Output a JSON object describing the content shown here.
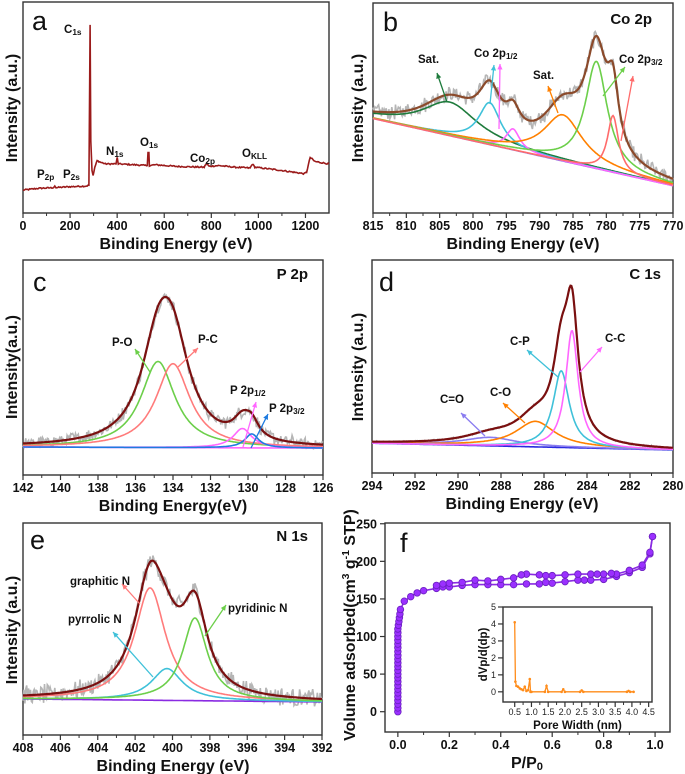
{
  "chart_data": [
    {
      "panel": "a",
      "type": "line",
      "title": "",
      "xlabel": "Binding Energy (eV)",
      "ylabel": "Intensity (a.u.)",
      "xlim": [
        0,
        1300
      ],
      "ylim": [
        -0.14,
        1.15
      ],
      "grid": false,
      "xticks": [
        0,
        200,
        400,
        600,
        800,
        1000,
        1200
      ],
      "series": [
        {
          "color": "#9b1b1b",
          "points": [
            [
              0,
              0
            ],
            [
              60,
              0.01
            ],
            [
              130,
              0.015
            ],
            [
              135,
              0.025
            ],
            [
              140,
              0.015
            ],
            [
              190,
              0.02
            ],
            [
              270,
              0.025
            ],
            [
              280,
              0.03
            ],
            [
              283,
              0.6
            ],
            [
              285,
              1.01
            ],
            [
              288,
              0.3
            ],
            [
              293,
              0.12
            ],
            [
              298,
              0.09
            ],
            [
              305,
              0.14
            ],
            [
              315,
              0.18
            ],
            [
              330,
              0.17
            ],
            [
              350,
              0.16
            ],
            [
              395,
              0.16
            ],
            [
              400,
              0.2
            ],
            [
              405,
              0.16
            ],
            [
              470,
              0.155
            ],
            [
              528,
              0.15
            ],
            [
              531,
              0.23
            ],
            [
              535,
              0.23
            ],
            [
              537,
              0.15
            ],
            [
              560,
              0.155
            ],
            [
              650,
              0.145
            ],
            [
              770,
              0.14
            ],
            [
              780,
              0.165
            ],
            [
              790,
              0.145
            ],
            [
              830,
              0.15
            ],
            [
              900,
              0.14
            ],
            [
              965,
              0.135
            ],
            [
              975,
              0.16
            ],
            [
              985,
              0.14
            ],
            [
              1100,
              0.12
            ],
            [
              1195,
              0.1
            ],
            [
              1205,
              0.11
            ],
            [
              1220,
              0.2
            ],
            [
              1240,
              0.175
            ],
            [
              1300,
              0.16
            ]
          ]
        }
      ],
      "annotations": [
        {
          "text": "C",
          "sub": "1s"
        },
        {
          "text": "P",
          "sub": "2p"
        },
        {
          "text": "P",
          "sub": "2s"
        },
        {
          "text": "N",
          "sub": "1s"
        },
        {
          "text": "O",
          "sub": "1s"
        },
        {
          "text": "Co",
          "sub": "2p"
        },
        {
          "text": "O",
          "sub": "KLL"
        }
      ]
    },
    {
      "panel": "b",
      "type": "line",
      "title": "Co 2p",
      "xlabel": "Binding Energy (eV)",
      "ylabel": "Intensity (a.u.)",
      "xlim": [
        815,
        770
      ],
      "ylim": [
        0,
        100
      ],
      "grid": false,
      "xticks": [
        815,
        810,
        805,
        800,
        795,
        790,
        785,
        780,
        775,
        770
      ],
      "baseline": [
        45,
        13
      ],
      "baseline_color": "#9370db",
      "envelope_color": "#8b4a2b",
      "raw_color": "#b5b5b5",
      "components": [
        {
          "center": 803.5,
          "amplitude": 16,
          "fwhm": 10,
          "color": "#1e7b3c"
        },
        {
          "center": 797.5,
          "amplitude": 20,
          "fwhm": 4,
          "color": "#3fc1d9"
        },
        {
          "center": 794.0,
          "amplitude": 10,
          "fwhm": 2.5,
          "color": "#ff66ff"
        },
        {
          "center": 786.5,
          "amplitude": 22,
          "fwhm": 7,
          "color": "#ff8000"
        },
        {
          "center": 781.5,
          "amplitude": 51,
          "fwhm": 4,
          "color": "#6ccf4a"
        },
        {
          "center": 779.0,
          "amplitude": 27,
          "fwhm": 2,
          "color": "#ff6b6b"
        }
      ],
      "annotations": [
        {
          "text": "Sat.",
          "sub": "",
          "arrow_colors": [
            "#1e7b3c"
          ]
        },
        {
          "text": "Co 2p",
          "sub": "1/2",
          "arrow_colors": [
            "#3fc1d9",
            "#ff66ff"
          ]
        },
        {
          "text": "Sat.",
          "sub": "",
          "arrow_colors": [
            "#ff8000"
          ]
        },
        {
          "text": "Co 2p",
          "sub": "3/2",
          "arrow_colors": [
            "#6ccf4a",
            "#ff6b6b"
          ]
        }
      ]
    },
    {
      "panel": "c",
      "type": "line",
      "title": "P 2p",
      "xlabel": "Binding Energy(eV)",
      "ylabel": "Intensity(a.u.)",
      "xlim": [
        142,
        126
      ],
      "ylim": [
        0,
        100
      ],
      "grid": false,
      "xticks": [
        142,
        140,
        138,
        136,
        134,
        132,
        130,
        128,
        126
      ],
      "baseline": [
        13,
        12.5
      ],
      "baseline_color": "#ff66ff",
      "envelope_color": "#7a1010",
      "raw_color": "#b5b5b5",
      "components": [
        {
          "center": 134.8,
          "amplitude": 40,
          "fwhm": 2.2,
          "color": "#6ccf4a"
        },
        {
          "center": 134.0,
          "amplitude": 39,
          "fwhm": 2.2,
          "color": "#ff7b7b"
        },
        {
          "center": 130.3,
          "amplitude": 9,
          "fwhm": 1.2,
          "color": "#ff66ff"
        },
        {
          "center": 129.8,
          "amplitude": 6.5,
          "fwhm": 0.9,
          "color": "#1e7be0"
        }
      ],
      "annotations": [
        {
          "text": "P-O",
          "sub": "",
          "arrow_colors": [
            "#6ccf4a"
          ]
        },
        {
          "text": "P-C",
          "sub": "",
          "arrow_colors": [
            "#ff7b7b"
          ]
        },
        {
          "text": "P 2p",
          "sub": "1/2",
          "arrow_colors": [
            "#ff66ff"
          ]
        },
        {
          "text": "P 2p",
          "sub": "3/2",
          "arrow_colors": [
            "#1e7be0"
          ]
        }
      ]
    },
    {
      "panel": "d",
      "type": "line",
      "title": "C 1s",
      "xlabel": "Binding Energy (eV)",
      "ylabel": "Intensity (a.u.)",
      "xlim": [
        294,
        280
      ],
      "ylim": [
        0,
        100
      ],
      "grid": false,
      "xticks": [
        294,
        292,
        290,
        288,
        286,
        284,
        282,
        280
      ],
      "baseline": [
        14,
        10.8
      ],
      "baseline_color": "#2a2ae0",
      "envelope_color": "#7a1010",
      "raw_color": "#b5b5b5",
      "components": [
        {
          "center": 288.5,
          "amplitude": 4,
          "fwhm": 3,
          "color": "#8a7cf0"
        },
        {
          "center": 286.4,
          "amplitude": 12,
          "fwhm": 2.2,
          "color": "#ff8000"
        },
        {
          "center": 285.2,
          "amplitude": 36,
          "fwhm": 0.9,
          "color": "#3fc1d9"
        },
        {
          "center": 284.7,
          "amplitude": 55,
          "fwhm": 0.7,
          "color": "#ff66ff"
        }
      ],
      "annotations": [
        {
          "text": "C=O",
          "sub": "",
          "arrow_colors": [
            "#8a7cf0"
          ]
        },
        {
          "text": "C-O",
          "sub": "",
          "arrow_colors": [
            "#ff8000"
          ]
        },
        {
          "text": "C-P",
          "sub": "",
          "arrow_colors": [
            "#3fc1d9"
          ]
        },
        {
          "text": "C-C",
          "sub": "",
          "arrow_colors": [
            "#ff66ff"
          ]
        }
      ]
    },
    {
      "panel": "e",
      "type": "line",
      "title": "N 1s",
      "xlabel": "Binding Energy (eV)",
      "ylabel": "Intensity (a.u.)",
      "xlim": [
        408,
        392
      ],
      "ylim": [
        0,
        100
      ],
      "grid": false,
      "xticks": [
        408,
        406,
        404,
        402,
        400,
        398,
        396,
        394,
        392
      ],
      "baseline": [
        17,
        15.6
      ],
      "baseline_color": "#8a2be2",
      "envelope_color": "#7a1010",
      "raw_color": "#b5b5b5",
      "components": [
        {
          "center": 401.2,
          "amplitude": 53,
          "fwhm": 2.0,
          "color": "#ff7b7b"
        },
        {
          "center": 400.3,
          "amplitude": 15,
          "fwhm": 2.0,
          "color": "#3fc1d9"
        },
        {
          "center": 398.8,
          "amplitude": 39,
          "fwhm": 1.6,
          "color": "#6ccf4a"
        }
      ],
      "annotations": [
        {
          "text": "graphitic N",
          "sub": "",
          "arrow_colors": [
            "#ff7b7b"
          ]
        },
        {
          "text": "pyrrolic N",
          "sub": "",
          "arrow_colors": [
            "#3fc1d9"
          ]
        },
        {
          "text": "pyridinic N",
          "sub": "",
          "arrow_colors": [
            "#6ccf4a"
          ]
        }
      ]
    },
    {
      "panel": "f",
      "type": "line",
      "title": "",
      "xlabel": {
        "main": "P/P",
        "sub": "0"
      },
      "ylabel": {
        "parts": [
          "Volume adsorbed(cm",
          "3",
          " g",
          "-1",
          " STP)"
        ]
      },
      "xlim": [
        -0.05,
        1.058
      ],
      "ylim": [
        -27,
        251
      ],
      "grid": false,
      "xticks": [
        0.0,
        0.2,
        0.4,
        0.6,
        0.8,
        1.0
      ],
      "xtick_labels": [
        "0.0",
        "0.2",
        "0.4",
        "0.6",
        "0.8",
        "1.0"
      ],
      "yticks": [
        0,
        50,
        100,
        150,
        200,
        250
      ],
      "ytick_labels": [
        "0",
        "50",
        "100",
        "150",
        "200",
        "250"
      ],
      "marker_color": "#9b30ff",
      "line_color": "#8a2be2",
      "series": [
        {
          "points": [
            [
              0,
              0
            ],
            [
              0,
              5
            ],
            [
              0,
              10
            ],
            [
              0,
              15
            ],
            [
              0,
              20
            ],
            [
              0,
              25
            ],
            [
              0,
              30
            ],
            [
              0,
              35
            ],
            [
              0,
              40
            ],
            [
              0,
              45
            ],
            [
              0,
              50
            ],
            [
              0,
              55
            ],
            [
              0,
              60
            ],
            [
              0,
              65
            ],
            [
              0,
              70
            ],
            [
              0,
              75
            ],
            [
              0,
              80
            ],
            [
              0,
              85
            ],
            [
              0,
              90
            ],
            [
              0,
              95
            ],
            [
              0,
              100
            ],
            [
              0,
              105
            ],
            [
              0,
              110
            ],
            [
              0.002,
              115
            ],
            [
              0.004,
              120
            ],
            [
              0.006,
              125
            ],
            [
              0.008,
              130
            ],
            [
              0.01,
              136
            ],
            [
              0.025,
              147
            ],
            [
              0.05,
              153
            ],
            [
              0.075,
              158
            ],
            [
              0.1,
              161
            ],
            [
              0.15,
              164
            ],
            [
              0.175,
              166
            ],
            [
              0.2,
              166
            ],
            [
              0.25,
              168
            ],
            [
              0.3,
              169
            ],
            [
              0.35,
              169
            ],
            [
              0.4,
              169
            ],
            [
              0.45,
              169
            ],
            [
              0.5,
              170
            ],
            [
              0.55,
              170
            ],
            [
              0.575,
              172
            ],
            [
              0.6,
              171
            ],
            [
              0.65,
              173
            ],
            [
              0.7,
              175
            ],
            [
              0.725,
              175
            ],
            [
              0.75,
              175
            ],
            [
              0.8,
              176
            ],
            [
              0.85,
              180
            ],
            [
              0.9,
              185
            ],
            [
              0.95,
              192
            ],
            [
              0.98,
              210
            ],
            [
              0.99,
              233
            ]
          ]
        },
        {
          "points": [
            [
              0.99,
              233
            ],
            [
              0.98,
              212
            ],
            [
              0.95,
              195
            ],
            [
              0.9,
              188
            ],
            [
              0.85,
              183
            ],
            [
              0.83,
              184
            ],
            [
              0.8,
              183
            ],
            [
              0.775,
              183
            ],
            [
              0.75,
              183
            ],
            [
              0.7,
              183
            ],
            [
              0.65,
              182
            ],
            [
              0.6,
              181
            ],
            [
              0.575,
              181
            ],
            [
              0.55,
              182
            ],
            [
              0.5,
              183
            ],
            [
              0.48,
              182
            ],
            [
              0.45,
              178
            ],
            [
              0.4,
              176
            ],
            [
              0.35,
              174
            ],
            [
              0.3,
              175
            ],
            [
              0.25,
              172
            ],
            [
              0.2,
              171
            ],
            [
              0.175,
              170
            ],
            [
              0.15,
              168
            ]
          ]
        }
      ],
      "inset": {
        "xlabel": "Pore Width (nm)",
        "ylabel": "dVp/d(dp)",
        "xlim": [
          0.15,
          4.6
        ],
        "ylim": [
          -0.6,
          5
        ],
        "xticks": [
          0.5,
          1.0,
          1.5,
          2.0,
          2.5,
          3.0,
          3.5,
          4.0,
          4.5
        ],
        "xtick_labels": [
          "0.5",
          "1.0",
          "1.5",
          "2.0",
          "2.5",
          "3.0",
          "3.5",
          "4.0",
          "4.5"
        ],
        "yticks": [
          0,
          1,
          2,
          3,
          4,
          5
        ],
        "ytick_labels": [
          "0",
          "1",
          "2",
          "3",
          "4",
          "5"
        ],
        "color": "#ff8c1a",
        "points": [
          [
            0.5,
            4.1
          ],
          [
            0.52,
            0.6
          ],
          [
            0.55,
            0.35
          ],
          [
            0.6,
            0.3
          ],
          [
            0.65,
            0.2
          ],
          [
            0.7,
            0.15
          ],
          [
            0.75,
            0.1
          ],
          [
            0.8,
            0.3
          ],
          [
            0.85,
            0.05
          ],
          [
            0.9,
            0.1
          ],
          [
            0.95,
            0.75
          ],
          [
            0.97,
            0.0
          ],
          [
            1.0,
            0.0
          ],
          [
            1.4,
            0.0
          ],
          [
            1.45,
            0.35
          ],
          [
            1.5,
            0.0
          ],
          [
            1.9,
            0.0
          ],
          [
            1.95,
            0.15
          ],
          [
            2.0,
            0.0
          ],
          [
            2.45,
            0.0
          ],
          [
            2.5,
            0.08
          ],
          [
            2.55,
            0.0
          ],
          [
            3.85,
            0.0
          ],
          [
            3.9,
            0.05
          ],
          [
            3.95,
            0.0
          ],
          [
            4.05,
            0.0
          ]
        ]
      }
    }
  ]
}
